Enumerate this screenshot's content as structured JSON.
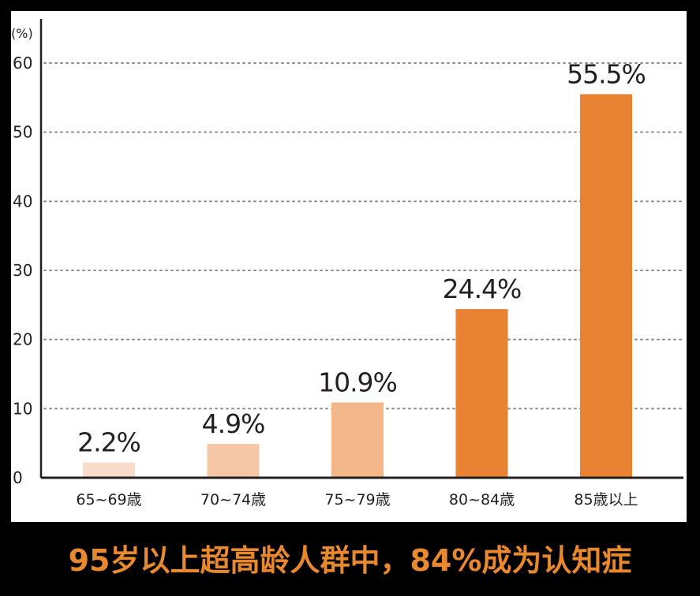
{
  "caption": "95岁以上超高龄人群中，84%成为认知症",
  "chart_data": {
    "type": "bar",
    "title": "",
    "xlabel": "",
    "ylabel": "",
    "unit": "(%)",
    "categories": [
      "65~69歳",
      "70~74歳",
      "75~79歳",
      "80~84歳",
      "85歳以上"
    ],
    "values": [
      2.2,
      4.9,
      10.9,
      24.4,
      55.5
    ],
    "data_labels": [
      "2.2%",
      "4.9%",
      "10.9%",
      "24.4%",
      "55.5%"
    ],
    "yticks": [
      0,
      10,
      20,
      30,
      40,
      50,
      60
    ],
    "ylim": [
      0,
      60
    ],
    "grid": "dotted horizontal",
    "colors": [
      "#f8dccb",
      "#f5c7a6",
      "#f3b78c",
      "#ea8233",
      "#ea8233"
    ]
  }
}
